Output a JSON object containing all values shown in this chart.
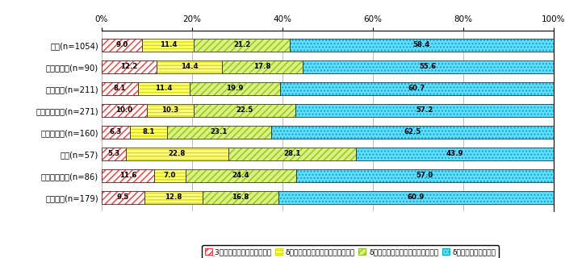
{
  "categories": [
    "全体(n=1054)",
    "建築・土木(n=90)",
    "素材製造(n=211)",
    "機械器具製造(n=271)",
    "商社・流通(n=160)",
    "金融(n=57)",
    "社会インフラ(n=86)",
    "サービス(n=179)"
  ],
  "values": [
    [
      9.0,
      11.4,
      21.2,
      58.4
    ],
    [
      12.2,
      14.4,
      17.8,
      55.6
    ],
    [
      8.1,
      11.4,
      19.9,
      60.7
    ],
    [
      10.0,
      10.3,
      22.5,
      57.2
    ],
    [
      6.3,
      8.1,
      23.1,
      62.5
    ],
    [
      5.3,
      22.8,
      28.1,
      43.9
    ],
    [
      11.6,
      7.0,
      24.4,
      57.0
    ],
    [
      9.5,
      12.8,
      16.8,
      60.9
    ]
  ],
  "seg_colors": [
    "#ff4444",
    "#ffff44",
    "#aadd00",
    "#22ccee"
  ],
  "seg_face_colors": [
    "#ffffff",
    "#ffff88",
    "#ccee44",
    "#44ddff"
  ],
  "seg_hatches": [
    "////",
    "----",
    "////",
    "...."
  ],
  "seg_edge_colors": [
    "#cc0000",
    "#bbbb00",
    "#669900",
    "#0099bb"
  ],
  "legend_labels": [
    "̤3年以上前から推進している",
    "δこの数年で推進するようになった",
    "δ現在、試行・検討を始めたところ",
    "δ特に推進していない"
  ],
  "xlim": [
    0,
    100
  ],
  "bar_height": 0.6,
  "figsize": [
    7.0,
    3.2
  ],
  "dpi": 100,
  "bg_color": "#ffffff",
  "font_size_labels": 7.2,
  "font_size_values": 6.2,
  "font_size_legend": 6.5,
  "font_size_ticks": 7.5
}
